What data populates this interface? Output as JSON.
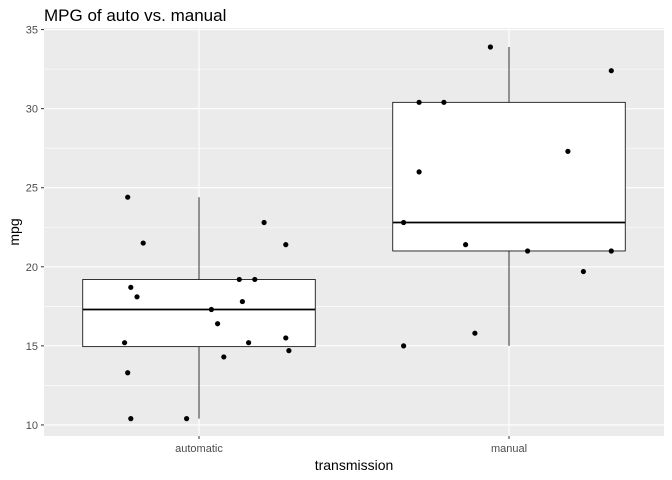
{
  "chart_data": {
    "type": "boxplot",
    "title": "MPG of auto vs. manual",
    "xlabel": "transmission",
    "ylabel": "mpg",
    "categories": [
      "automatic",
      "manual"
    ],
    "ylim": [
      9.3,
      35.1
    ],
    "yticks": [
      10,
      15,
      20,
      25,
      30,
      35
    ],
    "grid": true,
    "colors": {
      "panel": "#ebebeb",
      "grid": "#ffffff",
      "box_fill": "#ffffff",
      "box_line": "#000000",
      "point": "#000000",
      "tick_text": "#4d4d4d"
    },
    "boxes": [
      {
        "category": "automatic",
        "min": 10.4,
        "q1": 14.95,
        "median": 17.3,
        "q3": 19.2,
        "max": 24.4
      },
      {
        "category": "manual",
        "min": 15.0,
        "q1": 21.0,
        "median": 22.8,
        "q3": 30.4,
        "max": 33.9
      }
    ],
    "points": [
      {
        "category": "automatic",
        "jitter": -0.2,
        "y": 18.1
      },
      {
        "category": "automatic",
        "jitter": -0.23,
        "y": 24.4
      },
      {
        "category": "automatic",
        "jitter": -0.18,
        "y": 21.5
      },
      {
        "category": "automatic",
        "jitter": -0.22,
        "y": 18.7
      },
      {
        "category": "automatic",
        "jitter": -0.24,
        "y": 15.2
      },
      {
        "category": "automatic",
        "jitter": -0.23,
        "y": 13.3
      },
      {
        "category": "automatic",
        "jitter": -0.22,
        "y": 10.4
      },
      {
        "category": "automatic",
        "jitter": 0.04,
        "y": 17.3
      },
      {
        "category": "automatic",
        "jitter": 0.06,
        "y": 16.4
      },
      {
        "category": "automatic",
        "jitter": 0.08,
        "y": 14.3
      },
      {
        "category": "automatic",
        "jitter": 0.13,
        "y": 19.2
      },
      {
        "category": "automatic",
        "jitter": 0.14,
        "y": 17.8
      },
      {
        "category": "automatic",
        "jitter": 0.16,
        "y": 15.2
      },
      {
        "category": "automatic",
        "jitter": 0.18,
        "y": 19.2
      },
      {
        "category": "automatic",
        "jitter": 0.21,
        "y": 22.8
      },
      {
        "category": "automatic",
        "jitter": 0.28,
        "y": 21.4
      },
      {
        "category": "automatic",
        "jitter": 0.28,
        "y": 15.5
      },
      {
        "category": "automatic",
        "jitter": 0.29,
        "y": 14.7
      },
      {
        "category": "automatic",
        "jitter": -0.04,
        "y": 10.4
      },
      {
        "category": "manual",
        "jitter": -0.34,
        "y": 15.0
      },
      {
        "category": "manual",
        "jitter": -0.34,
        "y": 22.8
      },
      {
        "category": "manual",
        "jitter": -0.29,
        "y": 26.0
      },
      {
        "category": "manual",
        "jitter": -0.29,
        "y": 30.4
      },
      {
        "category": "manual",
        "jitter": -0.21,
        "y": 30.4
      },
      {
        "category": "manual",
        "jitter": -0.14,
        "y": 21.4
      },
      {
        "category": "manual",
        "jitter": -0.11,
        "y": 15.8
      },
      {
        "category": "manual",
        "jitter": -0.06,
        "y": 33.9
      },
      {
        "category": "manual",
        "jitter": 0.06,
        "y": 21.0
      },
      {
        "category": "manual",
        "jitter": 0.19,
        "y": 27.3
      },
      {
        "category": "manual",
        "jitter": 0.24,
        "y": 19.7
      },
      {
        "category": "manual",
        "jitter": 0.33,
        "y": 32.4
      },
      {
        "category": "manual",
        "jitter": 0.33,
        "y": 21.0
      }
    ]
  }
}
